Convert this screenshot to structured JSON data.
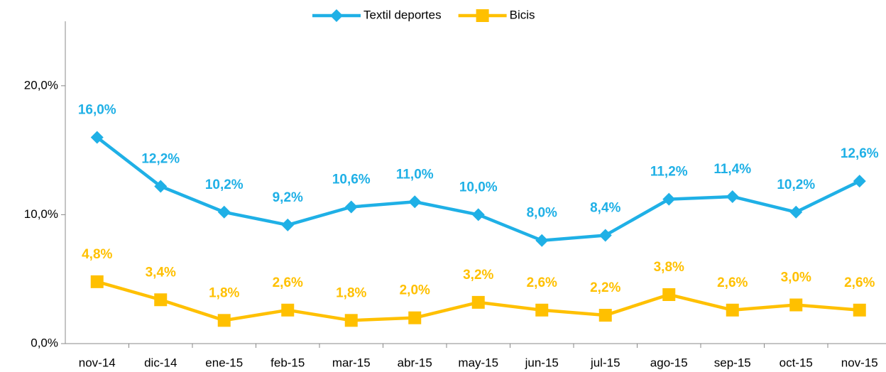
{
  "chart_data": {
    "type": "line",
    "categories": [
      "nov-14",
      "dic-14",
      "ene-15",
      "feb-15",
      "mar-15",
      "abr-15",
      "may-15",
      "jun-15",
      "jul-15",
      "ago-15",
      "sep-15",
      "oct-15",
      "nov-15"
    ],
    "series": [
      {
        "name": "Textil deportes",
        "color": "#1fb0e6",
        "marker": "diamond",
        "values": [
          16.0,
          12.2,
          10.2,
          9.2,
          10.6,
          11.0,
          10.0,
          8.0,
          8.4,
          11.2,
          11.4,
          10.2,
          12.6
        ],
        "value_labels": [
          "16,0%",
          "12,2%",
          "10,2%",
          "9,2%",
          "10,6%",
          "11,0%",
          "10,0%",
          "8,0%",
          "8,4%",
          "11,2%",
          "11,4%",
          "10,2%",
          "12,6%"
        ]
      },
      {
        "name": "Bicis",
        "color": "#ffc000",
        "marker": "square",
        "values": [
          4.8,
          3.4,
          1.8,
          2.6,
          1.8,
          2.0,
          3.2,
          2.6,
          2.2,
          3.8,
          2.6,
          3.0,
          2.6
        ],
        "value_labels": [
          "4,8%",
          "3,4%",
          "1,8%",
          "2,6%",
          "1,8%",
          "2,0%",
          "3,2%",
          "2,6%",
          "2,2%",
          "3,8%",
          "2,6%",
          "3,0%",
          "2,6%"
        ]
      }
    ],
    "ylim": [
      0,
      25
    ],
    "yticks": [
      {
        "value": 0,
        "label": "0,0%"
      },
      {
        "value": 10,
        "label": "10,0%"
      },
      {
        "value": 20,
        "label": "20,0%"
      }
    ],
    "grid": false,
    "legend": "top"
  }
}
